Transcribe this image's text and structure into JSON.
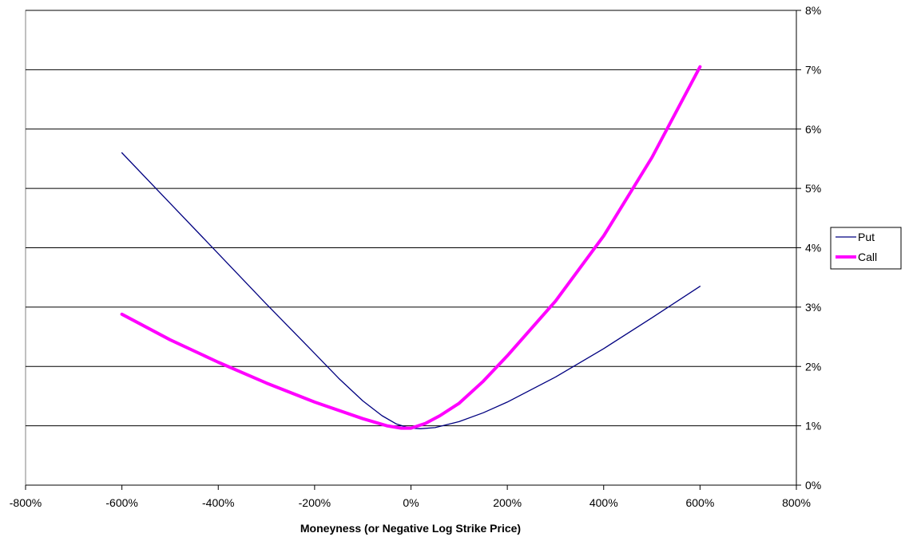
{
  "chart_data": {
    "type": "line",
    "title": "",
    "xlabel": "Moneyness (or Negative Log Strike Price)",
    "ylabel": "",
    "xlim": [
      -800,
      800
    ],
    "ylim": [
      0,
      8
    ],
    "x_ticks": [
      -800,
      -600,
      -400,
      -200,
      0,
      200,
      400,
      600,
      800
    ],
    "x_tick_labels": [
      "-800%",
      "-600%",
      "-400%",
      "-200%",
      "0%",
      "200%",
      "400%",
      "600%",
      "800%"
    ],
    "y_ticks": [
      0,
      1,
      2,
      3,
      4,
      5,
      6,
      7,
      8
    ],
    "y_tick_labels": [
      "0%",
      "1%",
      "2%",
      "3%",
      "4%",
      "5%",
      "6%",
      "7%",
      "8%"
    ],
    "y_axis_side": "right",
    "x_unit": "%",
    "y_unit": "%",
    "grid": "horizontal",
    "legend_position": "right",
    "series": [
      {
        "name": "Put",
        "color": "#000080",
        "style": "thin",
        "points": [
          [
            -600,
            5.6
          ],
          [
            -500,
            4.75
          ],
          [
            -400,
            3.9
          ],
          [
            -300,
            3.05
          ],
          [
            -200,
            2.22
          ],
          [
            -150,
            1.8
          ],
          [
            -100,
            1.42
          ],
          [
            -60,
            1.17
          ],
          [
            -30,
            1.03
          ],
          [
            -10,
            0.98
          ],
          [
            0,
            0.96
          ],
          [
            20,
            0.95
          ],
          [
            50,
            0.97
          ],
          [
            100,
            1.07
          ],
          [
            150,
            1.22
          ],
          [
            200,
            1.4
          ],
          [
            300,
            1.82
          ],
          [
            400,
            2.3
          ],
          [
            500,
            2.82
          ],
          [
            600,
            3.35
          ]
        ]
      },
      {
        "name": "Call",
        "color": "#ff00ff",
        "style": "thick",
        "points": [
          [
            -600,
            2.88
          ],
          [
            -500,
            2.45
          ],
          [
            -400,
            2.07
          ],
          [
            -300,
            1.72
          ],
          [
            -200,
            1.4
          ],
          [
            -100,
            1.12
          ],
          [
            -50,
            1.0
          ],
          [
            -20,
            0.96
          ],
          [
            0,
            0.96
          ],
          [
            30,
            1.04
          ],
          [
            60,
            1.17
          ],
          [
            100,
            1.38
          ],
          [
            150,
            1.75
          ],
          [
            200,
            2.18
          ],
          [
            300,
            3.1
          ],
          [
            400,
            4.2
          ],
          [
            500,
            5.52
          ],
          [
            600,
            7.05
          ]
        ]
      }
    ]
  }
}
